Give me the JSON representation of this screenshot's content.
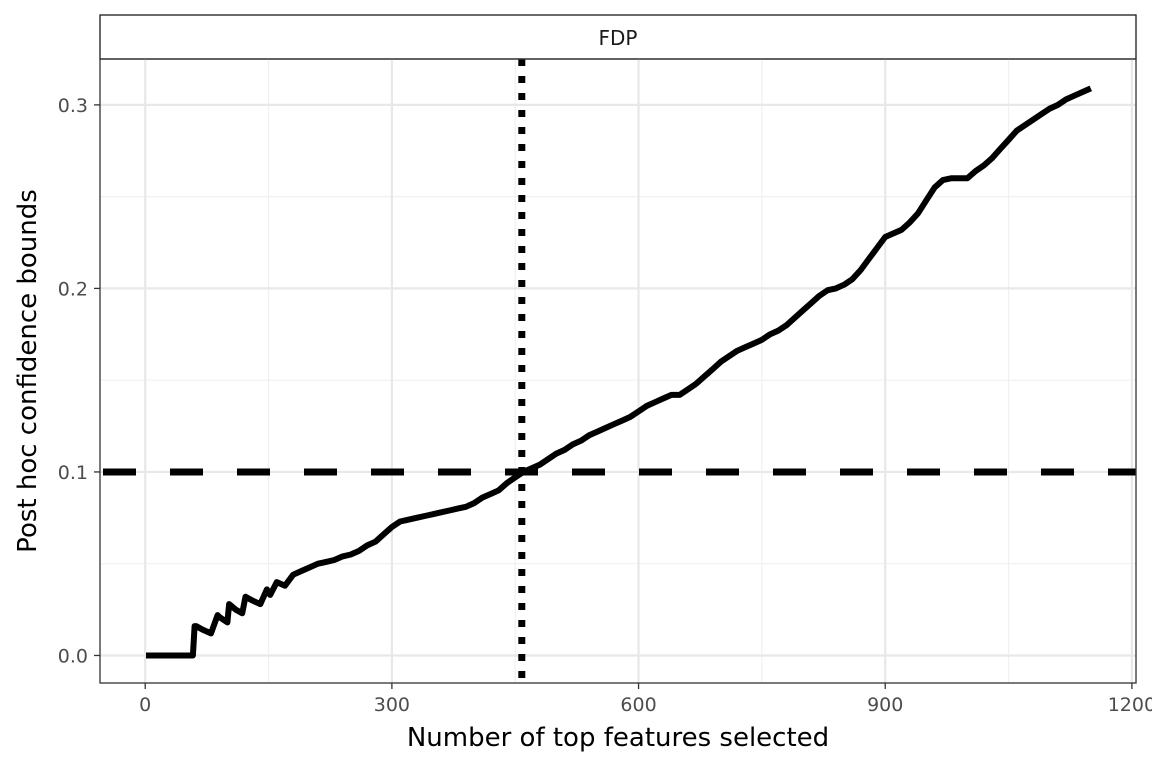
{
  "chart_data": {
    "type": "line",
    "panel_label": "FDP",
    "xlabel": "Number of top features selected",
    "ylabel": "Post hoc confidence bounds",
    "xlim": [
      -55,
      1205
    ],
    "ylim": [
      -0.015,
      0.325
    ],
    "x_ticks": [
      0,
      300,
      600,
      900,
      1200
    ],
    "x_tick_labels": [
      "0",
      "300",
      "600",
      "900",
      "1200"
    ],
    "y_ticks": [
      0.0,
      0.1,
      0.2,
      0.3
    ],
    "y_tick_labels": [
      "0.0",
      "0.1",
      "0.2",
      "0.3"
    ],
    "grid": true,
    "series": [
      {
        "x": [
          1,
          30,
          58,
          60,
          62,
          70,
          80,
          88,
          90,
          100,
          102,
          110,
          118,
          122,
          130,
          140,
          148,
          152,
          160,
          170,
          180,
          190,
          200,
          210,
          220,
          230,
          240,
          250,
          260,
          270,
          280,
          290,
          300,
          310,
          320,
          330,
          340,
          350,
          360,
          370,
          380,
          390,
          400,
          410,
          420,
          430,
          440,
          450,
          460,
          470,
          480,
          490,
          500,
          510,
          520,
          530,
          540,
          550,
          560,
          570,
          580,
          590,
          600,
          610,
          620,
          630,
          640,
          650,
          660,
          670,
          680,
          690,
          700,
          710,
          720,
          730,
          740,
          750,
          760,
          770,
          780,
          790,
          800,
          810,
          820,
          830,
          840,
          850,
          860,
          870,
          880,
          890,
          900,
          910,
          920,
          930,
          940,
          950,
          960,
          970,
          980,
          990,
          1000,
          1010,
          1020,
          1030,
          1040,
          1050,
          1060,
          1070,
          1080,
          1090,
          1100,
          1110,
          1120,
          1130,
          1140,
          1150
        ],
        "y": [
          0.0,
          0.0,
          0.0,
          0.016,
          0.016,
          0.014,
          0.012,
          0.022,
          0.021,
          0.018,
          0.028,
          0.025,
          0.023,
          0.032,
          0.03,
          0.028,
          0.036,
          0.033,
          0.04,
          0.038,
          0.044,
          0.046,
          0.048,
          0.05,
          0.051,
          0.052,
          0.054,
          0.055,
          0.057,
          0.06,
          0.062,
          0.066,
          0.07,
          0.073,
          0.074,
          0.075,
          0.076,
          0.077,
          0.078,
          0.079,
          0.08,
          0.081,
          0.083,
          0.086,
          0.088,
          0.09,
          0.094,
          0.097,
          0.1,
          0.102,
          0.104,
          0.107,
          0.11,
          0.112,
          0.115,
          0.117,
          0.12,
          0.122,
          0.124,
          0.126,
          0.128,
          0.13,
          0.133,
          0.136,
          0.138,
          0.14,
          0.142,
          0.142,
          0.145,
          0.148,
          0.152,
          0.156,
          0.16,
          0.163,
          0.166,
          0.168,
          0.17,
          0.172,
          0.175,
          0.177,
          0.18,
          0.184,
          0.188,
          0.192,
          0.196,
          0.199,
          0.2,
          0.202,
          0.205,
          0.21,
          0.216,
          0.222,
          0.228,
          0.23,
          0.232,
          0.236,
          0.241,
          0.248,
          0.255,
          0.259,
          0.26,
          0.26,
          0.26,
          0.264,
          0.267,
          0.271,
          0.276,
          0.281,
          0.286,
          0.289,
          0.292,
          0.295,
          0.298,
          0.3,
          0.303,
          0.305,
          0.307,
          0.309
        ]
      }
    ],
    "reference_lines": [
      {
        "orientation": "horizontal",
        "value": 0.1,
        "style": "dashed"
      },
      {
        "orientation": "vertical",
        "value": 458,
        "style": "dotted"
      }
    ]
  }
}
